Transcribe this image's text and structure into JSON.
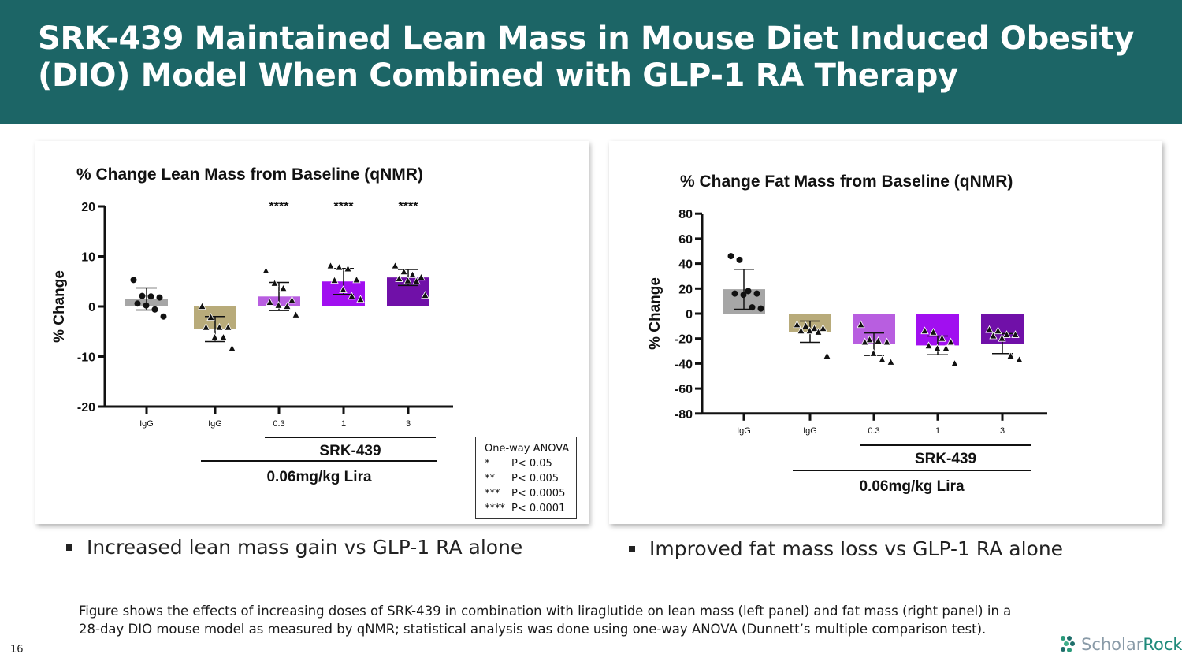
{
  "header": {
    "title": "SRK-439 Maintained Lean Mass in Mouse Diet Induced Obesity (DIO) Model When Combined with GLP-1 RA Therapy",
    "background_color": "#1c6566"
  },
  "chart_data": [
    {
      "type": "bar",
      "title": "% Change Lean Mass from Baseline (qNMR)",
      "ylabel": "% Change",
      "xlabel": "",
      "ylim": [
        -20,
        20
      ],
      "yticks": [
        -20,
        -10,
        0,
        10,
        20
      ],
      "categories": [
        "IgG",
        "IgG",
        "0.3",
        "1",
        "3"
      ],
      "values": [
        1.5,
        -4.5,
        2.0,
        5.0,
        5.8
      ],
      "error": [
        2.2,
        2.5,
        2.8,
        2.6,
        1.6
      ],
      "significance": [
        "",
        "",
        "****",
        "****",
        "****"
      ],
      "points": [
        [
          5.3,
          2.1,
          2.0,
          1.8,
          0.6,
          0.2,
          -0.6,
          -2.0
        ],
        [
          0.0,
          -2.2,
          -4.2,
          -4.2,
          -4.2,
          -6.2,
          -6.2,
          -8.4
        ],
        [
          7.1,
          4.6,
          3.6,
          1.2,
          0.8,
          0.2,
          0.0,
          -1.7
        ],
        [
          8.1,
          7.8,
          7.5,
          5.3,
          5.2,
          3.3,
          2.0,
          1.4
        ],
        [
          8.1,
          6.9,
          6.3,
          5.8,
          5.5,
          5.1,
          5.0,
          2.2
        ]
      ],
      "point_markers": [
        "circle",
        "triangle",
        "triangle",
        "triangle",
        "triangle"
      ],
      "colors": [
        "#a6a6a6",
        "#b8ab7a",
        "#b85ee0",
        "#a10ff0",
        "#7010a8"
      ],
      "groups": {
        "srk_label": "SRK-439",
        "lira_label": "0.06mg/kg Lira"
      }
    },
    {
      "type": "bar",
      "title": "% Change Fat Mass from Baseline (qNMR)",
      "ylabel": "% Change",
      "xlabel": "",
      "ylim": [
        -80,
        80
      ],
      "yticks": [
        -80,
        -60,
        -40,
        -20,
        0,
        20,
        40,
        60,
        80
      ],
      "categories": [
        "IgG",
        "IgG",
        "0.3",
        "1",
        "3"
      ],
      "values": [
        19.5,
        -14.5,
        -24.5,
        -25.5,
        -24.0
      ],
      "error": [
        16.0,
        8.5,
        9.0,
        7.5,
        8.0
      ],
      "significance": [
        "",
        "",
        "",
        "",
        ""
      ],
      "points": [
        [
          46,
          43,
          18,
          16,
          16,
          15,
          5,
          4
        ],
        [
          -9,
          -10,
          -12,
          -12,
          -14,
          -14,
          -15,
          -34
        ],
        [
          -9,
          -21,
          -22,
          -23,
          -23,
          -32,
          -37,
          -39
        ],
        [
          -14,
          -15,
          -20,
          -23,
          -26,
          -28,
          -28,
          -40
        ],
        [
          -13,
          -14,
          -17,
          -17,
          -18,
          -20,
          -34,
          -37
        ]
      ],
      "point_markers": [
        "circle",
        "triangle",
        "triangle",
        "triangle",
        "triangle"
      ],
      "colors": [
        "#a6a6a6",
        "#b8ab7a",
        "#b85ee0",
        "#a10ff0",
        "#7010a8"
      ],
      "groups": {
        "srk_label": "SRK-439",
        "lira_label": "0.06mg/kg Lira"
      }
    }
  ],
  "legend": {
    "title": "One-way ANOVA",
    "rows": [
      {
        "stars": "*",
        "p": "P< 0.05"
      },
      {
        "stars": "**",
        "p": "P< 0.005"
      },
      {
        "stars": "***",
        "p": "P< 0.0005"
      },
      {
        "stars": "****",
        "p": "P< 0.0001"
      }
    ]
  },
  "bullets": {
    "left": "Increased lean mass gain vs GLP-1 RA alone",
    "right": "Improved fat mass loss vs GLP-1 RA alone"
  },
  "caption": "Figure shows the effects of increasing doses of SRK-439 in combination with liraglutide on lean mass (left panel) and fat mass (right panel) in a 28-day DIO mouse model as measured by qNMR; statistical analysis was done using one-way ANOVA (Dunnett’s multiple comparison test).",
  "page_number": "16",
  "logo": {
    "word1": "Scholar",
    "word2": "Rock"
  }
}
